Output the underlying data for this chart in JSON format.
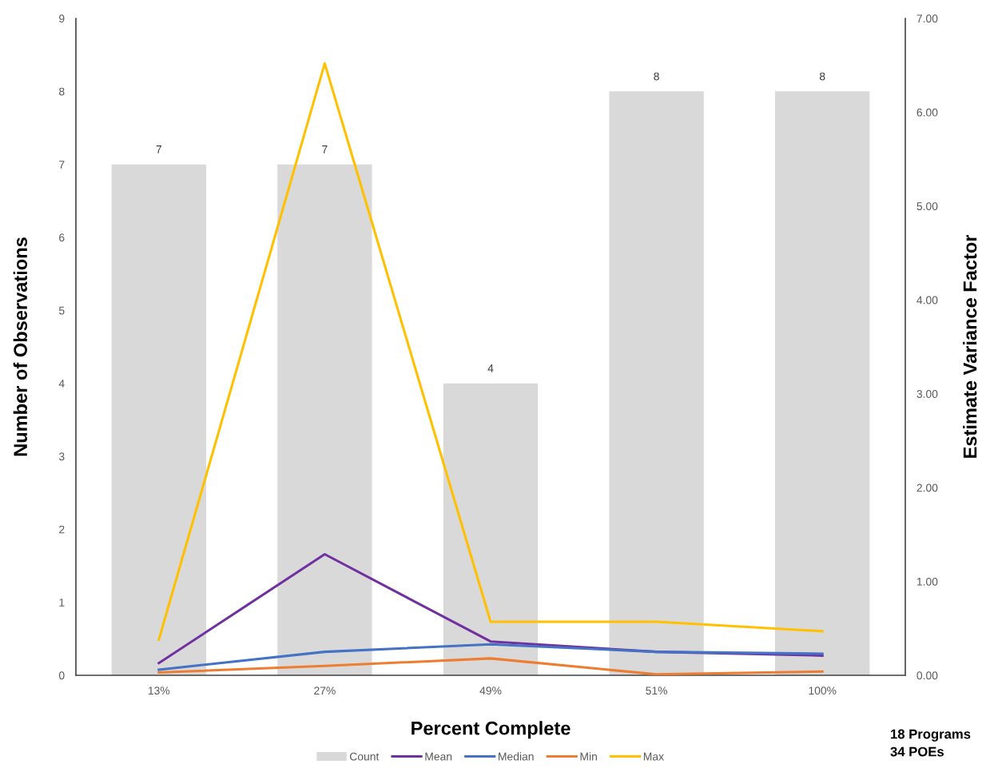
{
  "chart_data": {
    "type": "bar",
    "xlabel": "Percent Complete",
    "ylabel": "Number of Observations",
    "y2label": "Estimate Variance Factor",
    "categories": [
      "13%",
      "27%",
      "49%",
      "51%",
      "100%"
    ],
    "series": [
      {
        "name": "Count",
        "color": "#d9d9d9",
        "values": [
          7,
          7,
          4,
          8,
          8
        ],
        "data_labels": true
      },
      {
        "name": "Mean",
        "type": "line",
        "axis": "y2",
        "color": "#7030a0",
        "values": [
          0.13,
          1.29,
          0.36,
          0.25,
          0.21
        ]
      },
      {
        "name": "Median",
        "type": "line",
        "axis": "y2",
        "color": "#4472c4",
        "values": [
          0.06,
          0.25,
          0.33,
          0.25,
          0.23
        ]
      },
      {
        "name": "Min",
        "type": "line",
        "axis": "y2",
        "color": "#ed7d31",
        "values": [
          0.03,
          0.1,
          0.18,
          0.01,
          0.04
        ]
      },
      {
        "name": "Max",
        "type": "line",
        "axis": "y2",
        "color": "#ffc000",
        "values": [
          0.38,
          6.52,
          0.57,
          0.57,
          0.47
        ]
      }
    ],
    "ylim": [
      0,
      9
    ],
    "yticks": [
      0,
      1,
      2,
      3,
      4,
      5,
      6,
      7,
      8,
      9
    ],
    "y2lim": [
      0,
      7
    ],
    "y2ticks": [
      {
        "value": 0,
        "label": "0.00"
      },
      {
        "value": 1,
        "label": "1.00"
      },
      {
        "value": 2,
        "label": "2.00"
      },
      {
        "value": 3,
        "label": "3.00"
      },
      {
        "value": 4,
        "label": "4.00"
      },
      {
        "value": 5,
        "label": "5.00"
      },
      {
        "value": 6,
        "label": "6.00"
      },
      {
        "value": 7,
        "label": "7.00"
      }
    ],
    "grid": false,
    "legend": "bottom",
    "marker": "none",
    "line_style": "solid",
    "annotations": [
      "18 Programs",
      "34 POEs"
    ]
  }
}
